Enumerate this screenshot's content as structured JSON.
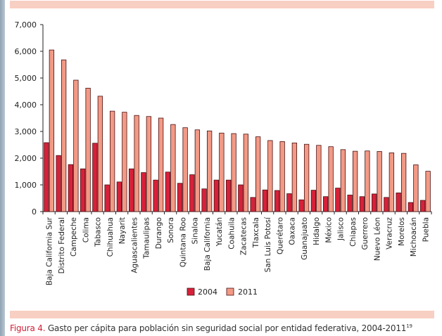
{
  "caption": {
    "figure_label": "Figura 4.",
    "text": " Gasto per cápita para población sin seguridad social por entidad federativa, 2004-2011",
    "superscript": "19"
  },
  "colors": {
    "series_2004": "#d7213a",
    "series_2011": "#f29a86",
    "band": "#f8cfc3",
    "caption_accent": "#d11f36"
  },
  "chart_data": {
    "type": "bar",
    "title": "",
    "xlabel": "",
    "ylabel": "",
    "ylim": [
      0,
      7000
    ],
    "yticks": [
      0,
      1000,
      2000,
      3000,
      4000,
      5000,
      6000,
      7000
    ],
    "ytick_labels": [
      "0",
      "1,000",
      "2,000",
      "3,000",
      "4,000",
      "5,000",
      "6,000",
      "7,000"
    ],
    "grid": false,
    "legend_position": "bottom-center",
    "categories": [
      "Baja California Sur",
      "Distrito Federal",
      "Campeche",
      "Colima",
      "Tabasco",
      "Chihuahua",
      "Nayarit",
      "Aguascalientes",
      "Tamaulipas",
      "Durango",
      "Sonora",
      "Quintana Roo",
      "Sinaloa",
      "Baja California",
      "Yucatán",
      "Coahuila",
      "Zacatecas",
      "Tlaxcala",
      "San Luis Potosí",
      "Querétaro",
      "Oaxaca",
      "Guanajuato",
      "Hidalgo",
      "México",
      "Jalisco",
      "Chiapas",
      "Guerrero",
      "Nuevo Léon",
      "Veracruz",
      "Morelos",
      "Michoacán",
      "Puebla"
    ],
    "series": [
      {
        "name": "2004",
        "values": [
          2580,
          2100,
          1760,
          1600,
          2560,
          1000,
          1110,
          1600,
          1460,
          1180,
          1480,
          1060,
          1380,
          850,
          1180,
          1180,
          1000,
          530,
          810,
          790,
          670,
          440,
          800,
          560,
          880,
          620,
          560,
          660,
          530,
          700,
          340,
          420
        ]
      },
      {
        "name": "2011",
        "values": [
          6050,
          5680,
          4920,
          4620,
          4320,
          3760,
          3720,
          3600,
          3560,
          3500,
          3260,
          3140,
          3060,
          3020,
          2940,
          2920,
          2900,
          2800,
          2660,
          2620,
          2570,
          2520,
          2480,
          2430,
          2320,
          2260,
          2270,
          2250,
          2200,
          2180,
          1750,
          1510
        ]
      }
    ]
  }
}
